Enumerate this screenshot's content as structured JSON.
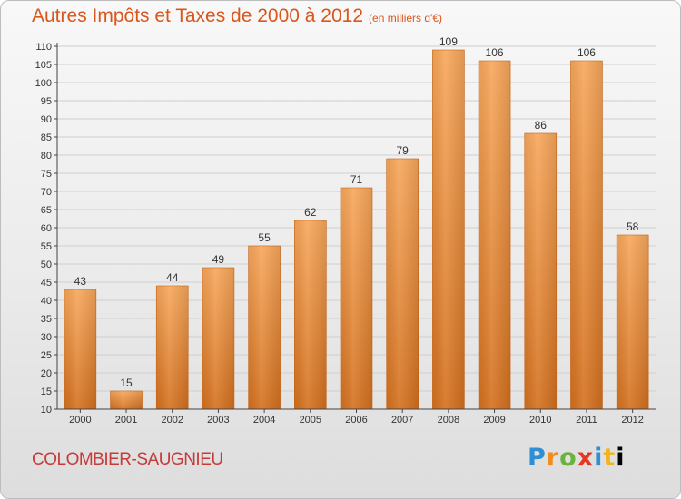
{
  "header": {
    "title": "Autres Impôts et Taxes de 2000 à 2012",
    "subtitle": "(en milliers d'€)"
  },
  "footer": {
    "commune": "COLOMBIER-SAUGNIEU",
    "brand": "Proxiti"
  },
  "colors": {
    "title": "#d9561c",
    "bar_top": "#f7a75b",
    "bar_bottom": "#d4701e",
    "axis": "#444444"
  },
  "chart_data": {
    "type": "bar",
    "title": "Autres Impôts et Taxes de 2000 à 2012",
    "subtitle": "(en milliers d'€)",
    "categories": [
      "2000",
      "2001",
      "2002",
      "2003",
      "2004",
      "2005",
      "2006",
      "2007",
      "2008",
      "2009",
      "2010",
      "2011",
      "2012"
    ],
    "values": [
      43,
      15,
      44,
      49,
      55,
      62,
      71,
      79,
      109,
      106,
      86,
      106,
      58
    ],
    "ylim": [
      10,
      110
    ],
    "yticks": [
      10,
      15,
      20,
      25,
      30,
      35,
      40,
      45,
      50,
      55,
      60,
      65,
      70,
      75,
      80,
      85,
      90,
      95,
      100,
      105,
      110
    ],
    "grid": true,
    "data_labels": true
  }
}
